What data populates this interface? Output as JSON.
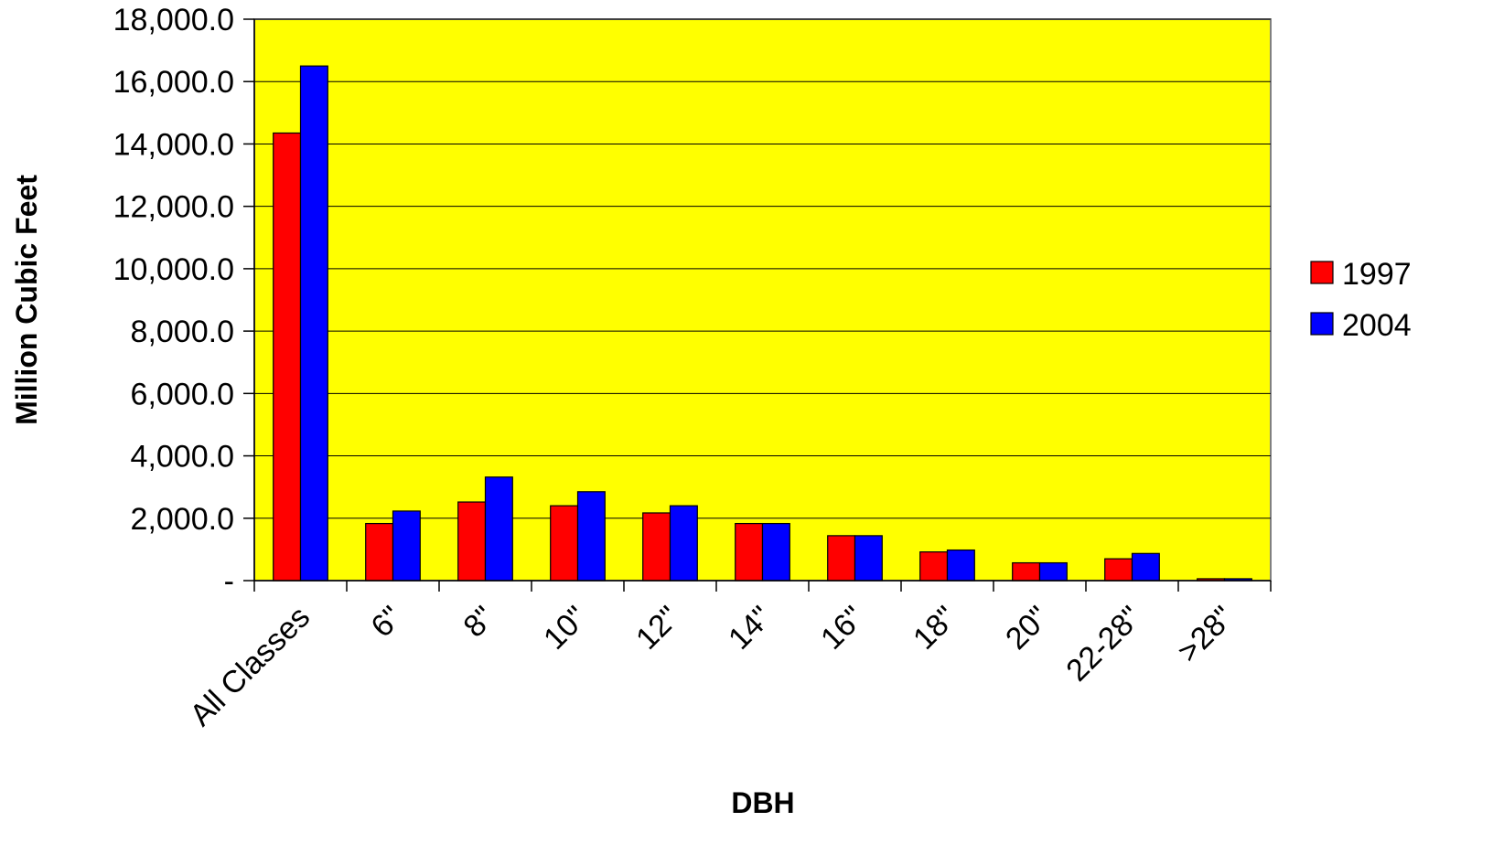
{
  "chart_data": {
    "type": "bar",
    "title": "",
    "xlabel": "DBH",
    "ylabel": "Million Cubic Feet",
    "categories": [
      "All Classes",
      "6\"",
      "8\"",
      "10\"",
      "12\"",
      "14\"",
      "16\"",
      "18\"",
      "20\"",
      "22-28\"",
      ">28\""
    ],
    "series": [
      {
        "name": "1997",
        "color": "#ff0000",
        "values": [
          14350,
          1830,
          2520,
          2400,
          2170,
          1830,
          1440,
          920,
          570,
          700,
          60
        ]
      },
      {
        "name": "2004",
        "color": "#0000ff",
        "values": [
          16500,
          2230,
          3320,
          2850,
          2400,
          1830,
          1440,
          980,
          570,
          870,
          60
        ]
      }
    ],
    "ylim": [
      0,
      18000
    ],
    "yticks": [
      0,
      2000,
      4000,
      6000,
      8000,
      10000,
      12000,
      14000,
      16000,
      18000
    ],
    "ytick_labels": [
      "-",
      "2,000.0",
      "4,000.0",
      "6,000.0",
      "8,000.0",
      "10,000.0",
      "12,000.0",
      "14,000.0",
      "16,000.0",
      "18,000.0"
    ],
    "grid": true,
    "plot_background": "#ffff00",
    "legend_position": "right"
  }
}
